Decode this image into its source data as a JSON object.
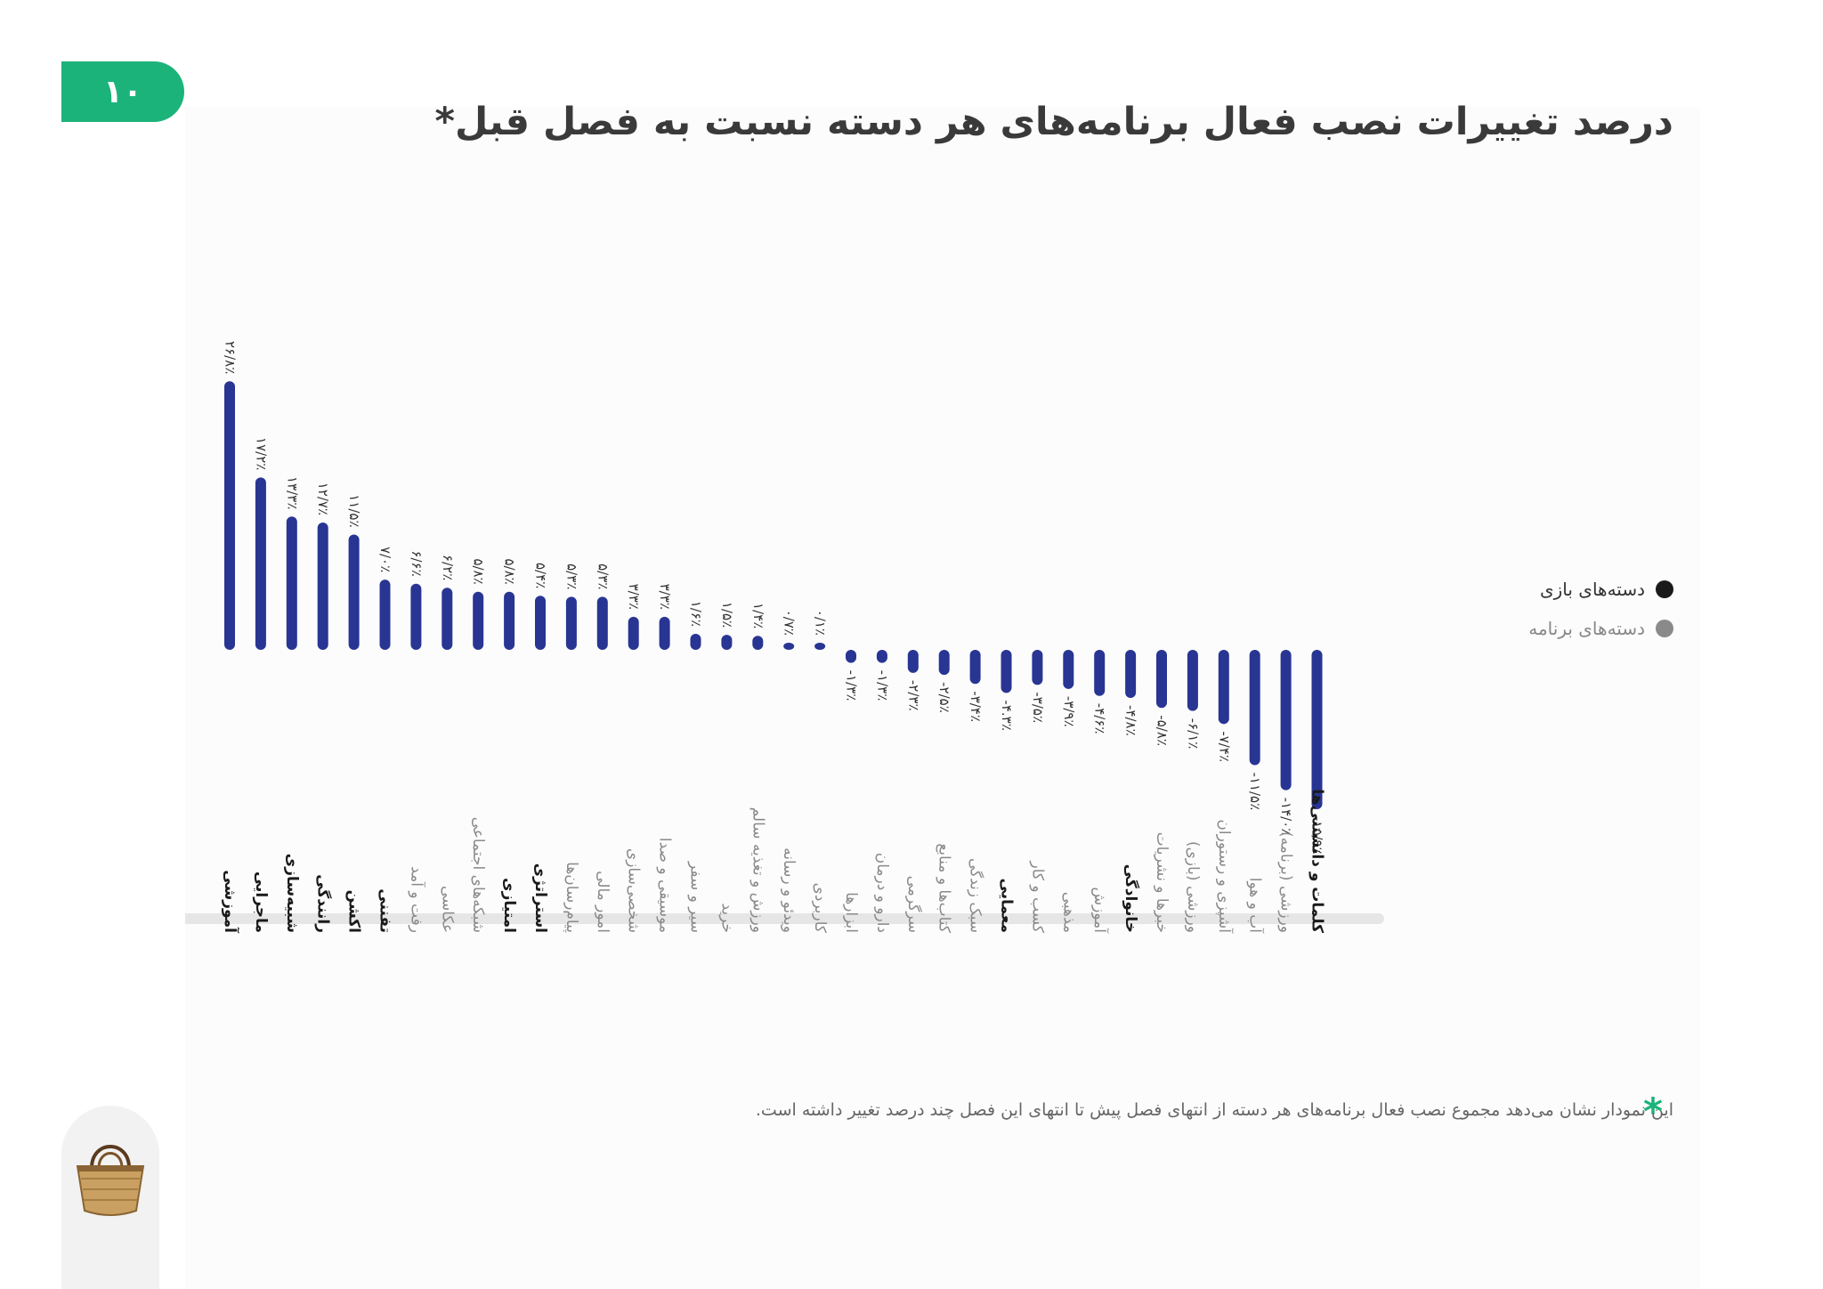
{
  "page": {
    "number": "۱۰",
    "title": "درصد تغییرات نصب فعال برنامه‌های هر دسته نسبت به فصل قبل*",
    "footnote_star": "*",
    "footnote": "این نمودار نشان می‌دهد مجموع نصب فعال برنامه‌های هر دسته از انتهای فصل پیش تا انتهای این فصل چند درصد تغییر داشته است.",
    "logo_icon": "basket-icon"
  },
  "legend": [
    {
      "label": "دسته‌های بازی",
      "color": "#1a1a1a"
    },
    {
      "label": "دسته‌های برنامه",
      "color": "#8a8a8a"
    }
  ],
  "chart_data": {
    "type": "bar",
    "bar_color": "#283593",
    "categories": [
      {
        "name": "آموزشی",
        "group": "game"
      },
      {
        "name": "ماجرایی",
        "group": "game"
      },
      {
        "name": "شبیه‌سازی",
        "group": "game"
      },
      {
        "name": "رانندگی",
        "group": "game"
      },
      {
        "name": "اکشن",
        "group": "game"
      },
      {
        "name": "تفننی",
        "group": "game"
      },
      {
        "name": "رفت و آمد",
        "group": "app"
      },
      {
        "name": "عکاسی",
        "group": "app"
      },
      {
        "name": "شبکه‌های اجتماعی",
        "group": "app"
      },
      {
        "name": "امتیازی",
        "group": "game"
      },
      {
        "name": "استراتژی",
        "group": "game"
      },
      {
        "name": "پیام‌رسان‌ها",
        "group": "app"
      },
      {
        "name": "امور مالی",
        "group": "app"
      },
      {
        "name": "شخصی‌سازی",
        "group": "app"
      },
      {
        "name": "موسیقی و صدا",
        "group": "app"
      },
      {
        "name": "سیر و سفر",
        "group": "app"
      },
      {
        "name": "خرید",
        "group": "app"
      },
      {
        "name": "ورزش و تغذیه سالم",
        "group": "app"
      },
      {
        "name": "ویدئو و رسانه",
        "group": "app"
      },
      {
        "name": "کاربردی",
        "group": "app"
      },
      {
        "name": "ابزارها",
        "group": "app"
      },
      {
        "name": "دارو و درمان",
        "group": "app"
      },
      {
        "name": "سرگرمی",
        "group": "app"
      },
      {
        "name": "کتاب‌ها و منابع",
        "group": "app"
      },
      {
        "name": "سبک زندگی",
        "group": "app"
      },
      {
        "name": "معمایی",
        "group": "game"
      },
      {
        "name": "کسب و کار",
        "group": "app"
      },
      {
        "name": "مذهبی",
        "group": "app"
      },
      {
        "name": "آموزش",
        "group": "app"
      },
      {
        "name": "خانوادگی",
        "group": "game"
      },
      {
        "name": "خبرها و نشریات",
        "group": "app"
      },
      {
        "name": "ورزشی (بازی)",
        "group": "app"
      },
      {
        "name": "آشپزی و رستوران",
        "group": "app"
      },
      {
        "name": "آب و هوا",
        "group": "app"
      },
      {
        "name": "ورزشی (برنامه)",
        "group": "app"
      },
      {
        "name": "کلمات و دانستنی‌ها",
        "group": "game"
      }
    ],
    "values": [
      26.8,
      17.2,
      13.3,
      12.7,
      11.5,
      7.0,
      6.6,
      6.2,
      5.8,
      5.8,
      5.4,
      5.3,
      5.3,
      3.3,
      3.3,
      1.6,
      1.5,
      1.4,
      0.7,
      0.1,
      -1.3,
      -1.3,
      -2.3,
      -2.5,
      -3.4,
      -4.3,
      -3.5,
      -3.9,
      -4.6,
      -4.8,
      -5.8,
      -6.1,
      -7.4,
      -11.5,
      -14.0,
      -15.9
    ],
    "labels": [
      "۲۶/۸٪",
      "۱۷/۲٪",
      "۱۳/۳٪",
      "۱۲/۷٪",
      "۱۱/۵٪",
      "۷/۰٪",
      "۶/۶٪",
      "۶/۲٪",
      "۵/۸٪",
      "۵/۸٪",
      "۵/۴٪",
      "۵/۳٪",
      "۵/۳٪",
      "۳/۳٪",
      "۳/۳٪",
      "۱/۶٪",
      "۱/۵٪",
      "۱/۴٪",
      "۰/۷٪",
      "۰/۱٪",
      "-۱/۳٪",
      "-۱/۳٪",
      "-۲/۳٪",
      "-۲/۵٪",
      "-۳/۴٪",
      "-۴.۳٪",
      "-۳/۵٪",
      "-۳/۹٪",
      "-۴/۶٪",
      "-۴/۸٪",
      "-۵/۸٪",
      "-۶/۱٪",
      "-۷/۴٪",
      "-۱۱/۵٪",
      "-۱۴/۰٪",
      "-۱۵/۹٪"
    ],
    "ylim": [
      -16,
      27
    ],
    "xlabel": "",
    "ylabel": ""
  }
}
